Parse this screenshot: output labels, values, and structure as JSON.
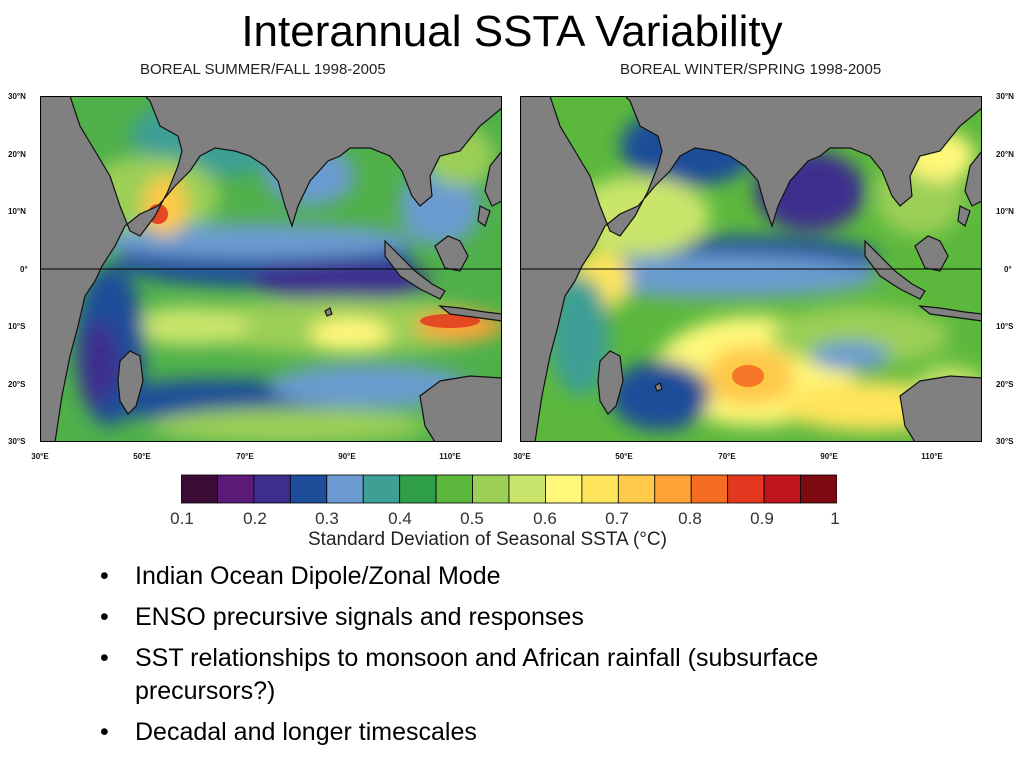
{
  "slide": {
    "title": "Interannual SSTA Variability"
  },
  "maps": {
    "left_title": "BOREAL SUMMER/FALL 1998-2005",
    "right_title": "BOREAL WINTER/SPRING 1998-2005",
    "lat_labels": [
      "30°N",
      "20°N",
      "10°N",
      "0°",
      "10°S",
      "20°S",
      "30°S"
    ],
    "lon_labels": [
      "30°E",
      "50°E",
      "70°E",
      "90°E",
      "110°E"
    ]
  },
  "colorbar": {
    "label": "Standard Deviation of Seasonal SSTA (°C)",
    "ticks": [
      "0.1",
      "0.2",
      "0.3",
      "0.4",
      "0.5",
      "0.6",
      "0.7",
      "0.8",
      "0.9",
      "1"
    ],
    "colors": [
      "#3b0a35",
      "#5c1a78",
      "#3d2e8e",
      "#1f4d99",
      "#6b9bd0",
      "#3e9f95",
      "#2e9e48",
      "#5cb83d",
      "#9bcf56",
      "#c9e56b",
      "#fff87a",
      "#ffe55c",
      "#ffc94a",
      "#ffa238",
      "#f46d22",
      "#e3381f",
      "#c0151d",
      "#7d0a10"
    ],
    "land_color": "#808080"
  },
  "bullets": [
    "Indian Ocean Dipole/Zonal Mode",
    "ENSO precursive signals and responses",
    "SST relationships to monsoon and African rainfall (subsurface precursors?)",
    "Decadal and longer timescales"
  ]
}
